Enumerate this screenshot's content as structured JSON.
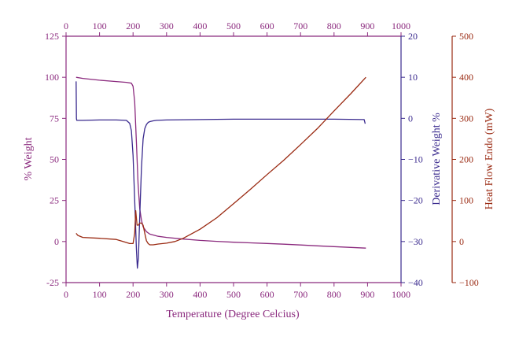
{
  "chart_data": {
    "type": "line",
    "xlabel": "Temperature (Degree Celcius)",
    "x_ticks": [
      0,
      100,
      200,
      300,
      400,
      500,
      600,
      700,
      800,
      900,
      1000
    ],
    "xlim": [
      0,
      1000
    ],
    "axes": {
      "left": {
        "label": "% Weight",
        "ylim": [
          -25,
          125
        ],
        "ticks": [
          -25,
          0,
          25,
          50,
          75,
          100,
          125
        ],
        "color": "#8b2a7e"
      },
      "right1": {
        "label": "Derivative Weight %",
        "ylim": [
          -40,
          20
        ],
        "ticks": [
          -40,
          -30,
          -20,
          -10,
          0,
          10,
          20
        ],
        "color": "#3a2a8e"
      },
      "right2": {
        "label": "Heat Flow Endo (mW)",
        "ylim": [
          -100,
          500
        ],
        "ticks": [
          -100,
          0,
          100,
          200,
          300,
          400,
          500
        ],
        "color": "#9a2a12"
      }
    },
    "series": [
      {
        "axis": "left",
        "color": "#8b2a7e",
        "x": [
          30,
          50,
          100,
          150,
          180,
          195,
          200,
          205,
          210,
          215,
          220,
          225,
          230,
          240,
          250,
          275,
          300,
          350,
          400,
          450,
          500,
          550,
          600,
          650,
          700,
          750,
          800,
          850,
          895
        ],
        "y": [
          100,
          99.3,
          98.2,
          97.4,
          96.9,
          96.4,
          94.5,
          85,
          60,
          35,
          20,
          13,
          9,
          6,
          4.5,
          3.2,
          2.5,
          1.5,
          0.7,
          0.1,
          -0.4,
          -0.8,
          -1.2,
          -1.6,
          -2.1,
          -2.6,
          -3.1,
          -3.6,
          -4
        ]
      },
      {
        "axis": "right1",
        "color": "#3a2a8e",
        "x": [
          30,
          31,
          32,
          50,
          100,
          150,
          180,
          190,
          195,
          200,
          205,
          210,
          213,
          216,
          220,
          225,
          230,
          235,
          240,
          245,
          250,
          255,
          260,
          270,
          300,
          400,
          500,
          600,
          700,
          800,
          890,
          892,
          893
        ],
        "y": [
          9,
          0,
          -0.5,
          -0.5,
          -0.4,
          -0.4,
          -0.5,
          -1.2,
          -3,
          -9,
          -20,
          -32,
          -36.5,
          -34,
          -24,
          -12,
          -5,
          -2.5,
          -1.5,
          -1,
          -0.8,
          -0.7,
          -0.6,
          -0.5,
          -0.4,
          -0.3,
          -0.2,
          -0.2,
          -0.2,
          -0.2,
          -0.3,
          -1,
          -1.3
        ]
      },
      {
        "axis": "right2",
        "color": "#9a2a12",
        "x": [
          30,
          35,
          50,
          100,
          150,
          170,
          190,
          200,
          205,
          208,
          212,
          216,
          220,
          225,
          230,
          235,
          240,
          245,
          250,
          260,
          275,
          300,
          325,
          350,
          400,
          450,
          500,
          550,
          600,
          650,
          700,
          750,
          800,
          850,
          895
        ],
        "y": [
          20,
          15,
          10,
          8,
          5,
          0,
          -5,
          -5,
          20,
          75,
          40,
          40,
          45,
          45,
          40,
          20,
          2,
          -5,
          -8,
          -8,
          -6,
          -4,
          0,
          8,
          30,
          58,
          92,
          127,
          163,
          198,
          236,
          275,
          318,
          360,
          400
        ]
      }
    ]
  }
}
